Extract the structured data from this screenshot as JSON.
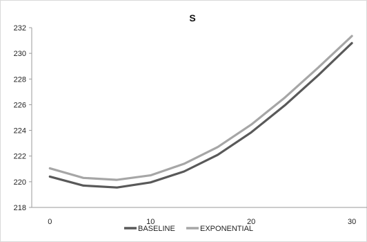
{
  "chart_data": {
    "type": "line",
    "title": "S",
    "xlabel": "",
    "ylabel": "",
    "x": [
      0,
      3.33,
      6.67,
      10,
      13.33,
      16.67,
      20,
      23.33,
      26.67,
      30
    ],
    "series": [
      {
        "name": "BASELINE",
        "color": "#595959",
        "values": [
          220.4,
          219.7,
          219.55,
          219.95,
          220.8,
          222.1,
          223.85,
          225.95,
          228.3,
          230.8
        ]
      },
      {
        "name": "EXPONENTIAL",
        "color": "#a6a6a6",
        "values": [
          221.05,
          220.3,
          220.15,
          220.5,
          221.4,
          222.7,
          224.45,
          226.55,
          228.9,
          231.35
        ]
      }
    ],
    "xlim": [
      -1.8,
      31.5
    ],
    "ylim": [
      218,
      232
    ],
    "x_ticks": [
      "0",
      "10",
      "20",
      "30"
    ],
    "y_ticks": [
      "218",
      "220",
      "222",
      "224",
      "226",
      "228",
      "230",
      "232"
    ],
    "grid": false,
    "legend_position": "bottom"
  }
}
